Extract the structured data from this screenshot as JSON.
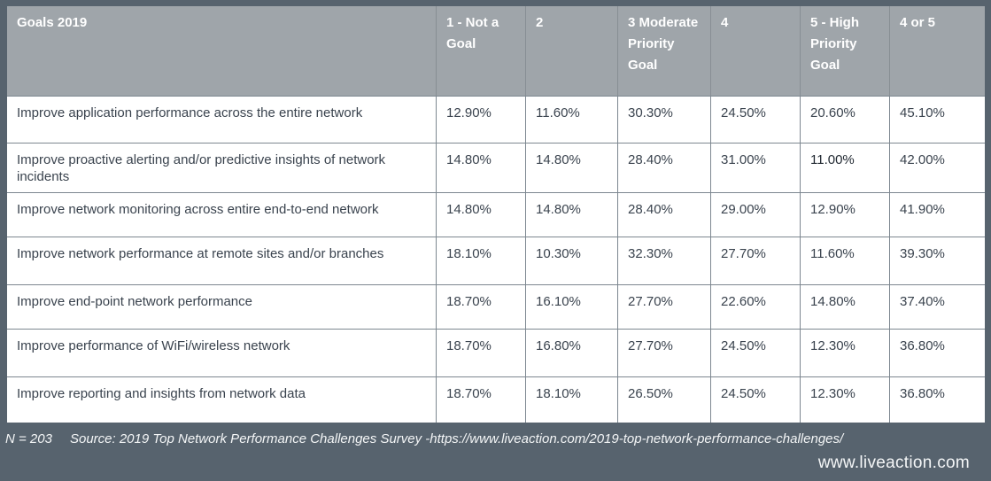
{
  "chart_data": {
    "type": "table",
    "title": "Goals 2019",
    "columns": [
      "1 - Not a Goal",
      "2",
      "3 Moderate Priority Goal",
      "4",
      "5 - High Priority Goal",
      "4 or 5"
    ],
    "rows": [
      {
        "goal": "Improve application performance across the entire network",
        "values": [
          "12.90%",
          "11.60%",
          "30.30%",
          "24.50%",
          "20.60%",
          "45.10%"
        ]
      },
      {
        "goal": "Improve proactive alerting and/or predictive insights of network incidents",
        "values": [
          "14.80%",
          "14.80%",
          "28.40%",
          "31.00%",
          "11.00%",
          "42.00%"
        ]
      },
      {
        "goal": "Improve network monitoring across entire end-to-end network",
        "values": [
          "14.80%",
          "14.80%",
          "28.40%",
          "29.00%",
          "12.90%",
          "41.90%"
        ]
      },
      {
        "goal": "Improve network performance at remote sites and/or branches",
        "values": [
          "18.10%",
          "10.30%",
          "32.30%",
          "27.70%",
          "11.60%",
          "39.30%"
        ]
      },
      {
        "goal": "Improve end-point network performance",
        "values": [
          "18.70%",
          "16.10%",
          "27.70%",
          "22.60%",
          "14.80%",
          "37.40%"
        ]
      },
      {
        "goal": "Improve performance of WiFi/wireless network",
        "values": [
          "18.70%",
          "16.80%",
          "27.70%",
          "24.50%",
          "12.30%",
          "36.80%"
        ]
      },
      {
        "goal": "Improve reporting and insights from network data",
        "values": [
          "18.70%",
          "18.10%",
          "26.50%",
          "24.50%",
          "12.30%",
          "36.80%"
        ]
      }
    ]
  },
  "footer": {
    "n_label": "N = 203",
    "source": "Source: 2019 Top Network Performance Challenges Survey -https://www.liveaction.com/2019-top-network-performance-challenges/",
    "website": "www.liveaction.com"
  },
  "colors": {
    "frame_bg": "#57636e",
    "header_bg": "#9fa5aa",
    "header_text": "#ffffff",
    "body_text": "#3a434e",
    "border": "#7d8790"
  }
}
